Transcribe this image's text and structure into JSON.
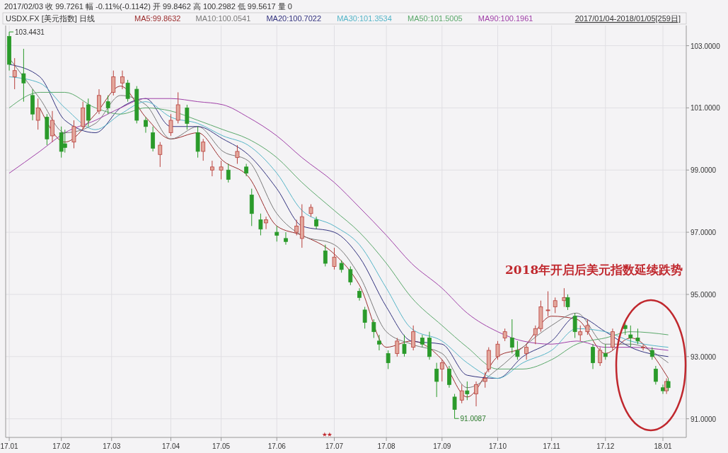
{
  "chart_data": {
    "type": "candlestick",
    "title": "2017/02/03 收 99.7261 幅 -0.11%(-0.1142) 开 99.8462 高 100.2982 低 99.5617 量 0",
    "subtitle": "USDX.FX [美元指数] 日线",
    "x": [
      "2017-01-03",
      "2017-01-06",
      "2017-01-11",
      "2017-01-16",
      "2017-01-19",
      "2017-01-24",
      "2017-01-27",
      "2017-02-01",
      "2017-02-03",
      "2017-02-08",
      "2017-02-13",
      "2017-02-16",
      "2017-02-22",
      "2017-02-27",
      "2017-03-02",
      "2017-03-07",
      "2017-03-10",
      "2017-03-15",
      "2017-03-20",
      "2017-03-24",
      "2017-03-28",
      "2017-04-03",
      "2017-04-07",
      "2017-04-12",
      "2017-04-18",
      "2017-04-21",
      "2017-04-26",
      "2017-05-01",
      "2017-05-05",
      "2017-05-10",
      "2017-05-15",
      "2017-05-18",
      "2017-05-23",
      "2017-05-26",
      "2017-06-01",
      "2017-06-06",
      "2017-06-12",
      "2017-06-15",
      "2017-06-20",
      "2017-06-23",
      "2017-06-28",
      "2017-07-03",
      "2017-07-07",
      "2017-07-12",
      "2017-07-17",
      "2017-07-20",
      "2017-07-25",
      "2017-07-28",
      "2017-08-02",
      "2017-08-07",
      "2017-08-11",
      "2017-08-16",
      "2017-08-21",
      "2017-08-25",
      "2017-08-29",
      "2017-09-01",
      "2017-09-05",
      "2017-09-08",
      "2017-09-12",
      "2017-09-15",
      "2017-09-20",
      "2017-09-25",
      "2017-09-27",
      "2017-10-02",
      "2017-10-06",
      "2017-10-10",
      "2017-10-13",
      "2017-10-18",
      "2017-10-23",
      "2017-10-26",
      "2017-10-30",
      "2017-11-03",
      "2017-11-08",
      "2017-11-10",
      "2017-11-14",
      "2017-11-17",
      "2017-11-21",
      "2017-11-24",
      "2017-11-28",
      "2017-12-01",
      "2017-12-05",
      "2017-12-12",
      "2017-12-15",
      "2017-12-19",
      "2017-12-22",
      "2017-12-27",
      "2017-12-29",
      "2018-01-02",
      "2018-01-04",
      "2018-01-05"
    ],
    "ohlc": [
      [
        103.3,
        103.4431,
        102.2,
        102.4
      ],
      [
        102.0,
        102.6,
        101.6,
        102.2
      ],
      [
        102.1,
        102.9,
        101.2,
        101.8
      ],
      [
        101.4,
        101.6,
        100.6,
        100.8
      ],
      [
        100.6,
        101.3,
        100.3,
        101.0
      ],
      [
        100.7,
        100.8,
        99.8,
        100.0
      ],
      [
        100.1,
        100.9,
        99.9,
        100.6
      ],
      [
        100.2,
        100.4,
        99.4,
        99.6
      ],
      [
        99.8462,
        100.2982,
        99.5617,
        99.7261
      ],
      [
        99.9,
        100.6,
        99.7,
        100.4
      ],
      [
        100.4,
        101.2,
        100.3,
        101.0
      ],
      [
        101.1,
        101.3,
        100.4,
        100.6
      ],
      [
        100.9,
        101.6,
        100.8,
        101.4
      ],
      [
        101.2,
        101.4,
        100.8,
        101.0
      ],
      [
        101.5,
        102.2,
        101.4,
        102.0
      ],
      [
        101.8,
        102.2,
        101.6,
        102.0
      ],
      [
        101.8,
        101.9,
        101.2,
        101.3
      ],
      [
        101.6,
        101.7,
        100.5,
        100.6
      ],
      [
        100.6,
        100.7,
        100.2,
        100.4
      ],
      [
        100.2,
        100.4,
        99.6,
        99.7
      ],
      [
        99.5,
        99.9,
        99.1,
        99.8
      ],
      [
        100.2,
        100.8,
        100.1,
        100.6
      ],
      [
        100.6,
        101.5,
        100.5,
        101.1
      ],
      [
        101.0,
        101.1,
        100.3,
        100.5
      ],
      [
        100.2,
        100.4,
        99.4,
        99.6
      ],
      [
        99.6,
        100.0,
        99.3,
        99.9
      ],
      [
        99.0,
        99.3,
        98.8,
        99.1
      ],
      [
        99.0,
        99.3,
        98.7,
        99.1
      ],
      [
        99.0,
        99.2,
        98.6,
        98.7
      ],
      [
        99.4,
        99.8,
        99.2,
        99.6
      ],
      [
        99.1,
        99.2,
        98.8,
        98.9
      ],
      [
        98.2,
        98.4,
        97.2,
        97.6
      ],
      [
        97.4,
        97.6,
        96.9,
        97.1
      ],
      [
        97.3,
        97.5,
        97.1,
        97.4
      ],
      [
        97.0,
        97.2,
        96.7,
        96.9
      ],
      [
        96.8,
        97.0,
        96.6,
        96.7
      ],
      [
        97.0,
        97.4,
        96.9,
        97.2
      ],
      [
        96.8,
        97.9,
        96.5,
        97.5
      ],
      [
        97.6,
        97.9,
        97.5,
        97.8
      ],
      [
        97.4,
        97.5,
        97.1,
        97.2
      ],
      [
        96.4,
        96.6,
        95.9,
        96.0
      ],
      [
        95.9,
        96.5,
        95.8,
        96.2
      ],
      [
        96.0,
        96.1,
        95.7,
        95.8
      ],
      [
        95.8,
        95.9,
        95.3,
        95.4
      ],
      [
        95.1,
        95.2,
        94.8,
        94.9
      ],
      [
        94.5,
        94.6,
        93.9,
        94.1
      ],
      [
        94.1,
        94.2,
        93.6,
        93.8
      ],
      [
        93.5,
        93.7,
        93.2,
        93.4
      ],
      [
        93.1,
        93.2,
        92.6,
        92.8
      ],
      [
        93.1,
        93.6,
        93.0,
        93.5
      ],
      [
        93.4,
        93.7,
        93.0,
        93.1
      ],
      [
        93.3,
        94.0,
        93.2,
        93.8
      ],
      [
        93.6,
        93.7,
        93.3,
        93.4
      ],
      [
        93.6,
        93.8,
        92.9,
        93.0
      ],
      [
        92.6,
        92.8,
        91.7,
        92.2
      ],
      [
        92.6,
        92.9,
        92.2,
        92.8
      ],
      [
        92.6,
        92.7,
        92.0,
        92.1
      ],
      [
        91.7,
        91.8,
        91.0087,
        91.3
      ],
      [
        91.6,
        92.1,
        91.5,
        91.9
      ],
      [
        91.9,
        92.2,
        91.6,
        91.8
      ],
      [
        91.8,
        92.2,
        91.4,
        92.1
      ],
      [
        92.2,
        92.5,
        92.0,
        92.3
      ],
      [
        92.6,
        93.3,
        92.5,
        93.2
      ],
      [
        93.0,
        93.5,
        92.9,
        93.4
      ],
      [
        93.6,
        93.9,
        93.5,
        93.8
      ],
      [
        93.6,
        94.2,
        93.1,
        93.3
      ],
      [
        93.2,
        93.5,
        92.9,
        93.0
      ],
      [
        93.1,
        93.4,
        92.9,
        93.3
      ],
      [
        93.7,
        94.0,
        93.4,
        93.9
      ],
      [
        93.9,
        94.8,
        93.8,
        94.6
      ],
      [
        94.5,
        95.1,
        94.3,
        94.5
      ],
      [
        94.6,
        94.9,
        94.4,
        94.8
      ],
      [
        94.8,
        95.2,
        94.6,
        94.9
      ],
      [
        94.9,
        95.0,
        94.5,
        94.6
      ],
      [
        94.3,
        94.4,
        93.6,
        93.8
      ],
      [
        93.7,
        94.0,
        93.5,
        93.8
      ],
      [
        93.8,
        94.2,
        93.7,
        94.0
      ],
      [
        93.3,
        93.4,
        92.6,
        92.8
      ],
      [
        92.8,
        93.3,
        92.7,
        93.2
      ],
      [
        93.1,
        93.4,
        92.9,
        93.0
      ],
      [
        93.3,
        93.9,
        93.2,
        93.8
      ],
      [
        94.0,
        94.1,
        93.7,
        93.9
      ],
      [
        93.7,
        94.0,
        93.3,
        93.6
      ],
      [
        93.6,
        93.9,
        93.4,
        93.5
      ],
      [
        93.3,
        93.4,
        93.2,
        93.3
      ],
      [
        93.2,
        93.3,
        92.9,
        93.0
      ],
      [
        92.6,
        92.7,
        92.1,
        92.2
      ],
      [
        92.0,
        92.1,
        91.8,
        91.9
      ],
      [
        91.9,
        92.3,
        91.8,
        92.2
      ],
      [
        92.2,
        92.3,
        91.9,
        92.0
      ]
    ],
    "series": [
      {
        "type": "line",
        "name": "MA5:99.8632",
        "color": "#9b2c2c",
        "x": [
          "2017-01-20",
          "2017-02-03",
          "2017-02-20",
          "2017-03-06",
          "2017-03-20",
          "2017-04-03",
          "2017-04-18",
          "2017-05-02",
          "2017-05-16",
          "2017-06-01",
          "2017-06-15",
          "2017-07-03",
          "2017-07-17",
          "2017-08-01",
          "2017-08-15",
          "2017-09-01",
          "2017-09-15",
          "2017-10-02",
          "2017-10-16",
          "2017-11-01",
          "2017-11-15",
          "2017-12-01",
          "2017-12-15",
          "2018-01-05"
        ],
        "values": [
          101.0,
          99.9,
          100.8,
          101.7,
          100.7,
          100.0,
          100.2,
          99.3,
          98.8,
          97.2,
          96.9,
          96.3,
          95.3,
          93.3,
          93.5,
          92.9,
          91.7,
          93.0,
          93.3,
          94.3,
          94.2,
          93.1,
          93.6,
          92.3
        ]
      },
      {
        "type": "line",
        "name": "MA10:100.0541",
        "color": "#7a7a7a",
        "x": [
          "2017-01-03",
          "2017-01-20",
          "2017-02-03",
          "2017-02-20",
          "2017-03-06",
          "2017-03-20",
          "2017-04-03",
          "2017-04-18",
          "2017-05-02",
          "2017-05-16",
          "2017-06-01",
          "2017-06-15",
          "2017-07-03",
          "2017-07-17",
          "2017-08-01",
          "2017-08-15",
          "2017-09-01",
          "2017-09-15",
          "2017-10-02",
          "2017-10-16",
          "2017-11-01",
          "2017-11-15",
          "2017-12-01",
          "2017-12-15",
          "2018-01-05"
        ],
        "values": [
          102.6,
          101.3,
          100.2,
          100.5,
          101.4,
          101.1,
          100.0,
          100.4,
          99.6,
          99.3,
          97.6,
          96.9,
          96.6,
          95.6,
          93.8,
          93.4,
          93.1,
          92.0,
          92.6,
          93.3,
          94.0,
          94.4,
          93.4,
          93.4,
          92.8
        ]
      },
      {
        "type": "line",
        "name": "MA20:100.7022",
        "color": "#33337f",
        "x": [
          "2017-01-03",
          "2017-01-20",
          "2017-02-03",
          "2017-02-20",
          "2017-03-06",
          "2017-03-20",
          "2017-04-03",
          "2017-04-18",
          "2017-05-02",
          "2017-05-16",
          "2017-06-01",
          "2017-06-15",
          "2017-07-03",
          "2017-07-17",
          "2017-08-01",
          "2017-08-15",
          "2017-09-01",
          "2017-09-15",
          "2017-10-02",
          "2017-10-16",
          "2017-11-01",
          "2017-11-15",
          "2017-12-01",
          "2017-12-15",
          "2018-01-05"
        ],
        "values": [
          102.4,
          102.0,
          100.6,
          100.2,
          101.0,
          101.3,
          100.4,
          100.4,
          100.0,
          99.5,
          98.4,
          97.2,
          97.0,
          96.2,
          94.6,
          93.5,
          93.4,
          92.4,
          92.3,
          93.0,
          93.5,
          94.3,
          93.8,
          93.3,
          93.0
        ]
      },
      {
        "type": "line",
        "name": "MA30:101.3534",
        "color": "#55b5c8",
        "x": [
          "2017-01-03",
          "2017-01-20",
          "2017-02-03",
          "2017-02-20",
          "2017-03-06",
          "2017-03-20",
          "2017-04-03",
          "2017-04-18",
          "2017-05-02",
          "2017-05-16",
          "2017-06-01",
          "2017-06-15",
          "2017-07-03",
          "2017-07-17",
          "2017-08-01",
          "2017-08-15",
          "2017-09-01",
          "2017-09-15",
          "2017-10-02",
          "2017-10-16",
          "2017-11-01",
          "2017-11-15",
          "2017-12-01",
          "2017-12-15",
          "2018-01-05"
        ],
        "values": [
          102.0,
          101.8,
          101.0,
          100.3,
          100.8,
          101.2,
          100.7,
          100.5,
          100.1,
          99.8,
          98.9,
          97.7,
          97.2,
          96.6,
          95.2,
          93.9,
          93.5,
          92.8,
          92.3,
          92.8,
          93.2,
          93.9,
          93.8,
          93.5,
          93.3
        ]
      },
      {
        "type": "line",
        "name": "MA50:101.5005",
        "color": "#5aa86a",
        "x": [
          "2017-01-03",
          "2017-01-20",
          "2017-02-03",
          "2017-02-20",
          "2017-03-06",
          "2017-03-20",
          "2017-04-03",
          "2017-04-18",
          "2017-05-02",
          "2017-05-16",
          "2017-06-01",
          "2017-06-15",
          "2017-07-03",
          "2017-07-17",
          "2017-08-01",
          "2017-08-15",
          "2017-09-01",
          "2017-09-15",
          "2017-10-02",
          "2017-10-16",
          "2017-11-01",
          "2017-11-15",
          "2017-12-01",
          "2017-12-15",
          "2018-01-05"
        ],
        "values": [
          101.0,
          101.5,
          101.5,
          101.0,
          100.8,
          101.0,
          100.9,
          100.6,
          100.3,
          100.0,
          99.4,
          98.6,
          97.7,
          97.0,
          96.0,
          94.9,
          94.0,
          93.3,
          92.6,
          92.6,
          92.9,
          93.4,
          93.6,
          93.8,
          93.7
        ]
      },
      {
        "type": "line",
        "name": "MA90:100.1961",
        "color": "#a040a8",
        "x": [
          "2017-01-03",
          "2017-01-20",
          "2017-02-03",
          "2017-02-20",
          "2017-03-06",
          "2017-03-20",
          "2017-04-03",
          "2017-04-18",
          "2017-05-02",
          "2017-05-16",
          "2017-06-01",
          "2017-06-15",
          "2017-07-03",
          "2017-07-17",
          "2017-08-01",
          "2017-08-15",
          "2017-09-01",
          "2017-09-15",
          "2017-10-02",
          "2017-10-16",
          "2017-11-01",
          "2017-11-15",
          "2017-12-01",
          "2017-12-15",
          "2018-01-05"
        ],
        "values": [
          98.9,
          99.6,
          100.2,
          100.6,
          101.0,
          101.3,
          101.3,
          101.2,
          101.1,
          100.7,
          100.1,
          99.4,
          98.6,
          97.8,
          96.9,
          96.0,
          95.2,
          94.4,
          93.8,
          93.5,
          93.4,
          93.5,
          93.3,
          93.3,
          93.2
        ]
      }
    ],
    "xlim": [
      "2017-01-01",
      "2018-01-15"
    ],
    "xticks": [
      {
        "value": "2017-01-03",
        "label": "17.01"
      },
      {
        "value": "2017-02-01",
        "label": "17.02"
      },
      {
        "value": "2017-03-01",
        "label": "17.03"
      },
      {
        "value": "2017-04-03",
        "label": "17.04"
      },
      {
        "value": "2017-05-01",
        "label": "17.05"
      },
      {
        "value": "2017-06-01",
        "label": "17.06"
      },
      {
        "value": "2017-07-03",
        "label": "17.07"
      },
      {
        "value": "2017-08-01",
        "label": "17.08"
      },
      {
        "value": "2017-09-01",
        "label": "17.09"
      },
      {
        "value": "2017-10-02",
        "label": "17.10"
      },
      {
        "value": "2017-11-01",
        "label": "17.11"
      },
      {
        "value": "2017-12-01",
        "label": "17.12"
      },
      {
        "value": "2018-01-02",
        "label": "18.01"
      }
    ],
    "ylim": [
      90.4,
      103.65
    ],
    "yticks": [
      {
        "value": 91,
        "label": "91.0000"
      },
      {
        "value": 93,
        "label": "93.0000"
      },
      {
        "value": 95,
        "label": "95.0000"
      },
      {
        "value": 97,
        "label": "97.0000"
      },
      {
        "value": 99,
        "label": "99.0000"
      },
      {
        "value": 101,
        "label": "101.0000"
      },
      {
        "value": 103,
        "label": "103.0000"
      }
    ],
    "grid": true,
    "legend": "top left",
    "annotations": [
      {
        "text": "103.4431",
        "x": "2017-01-03",
        "y": 103.4431
      },
      {
        "text": "91.0087",
        "x": "2017-09-08",
        "y": 91.0087
      },
      "2018年开启后美元指数延续跌势",
      "2017/01/04-2018/01/05[259日]"
    ]
  }
}
